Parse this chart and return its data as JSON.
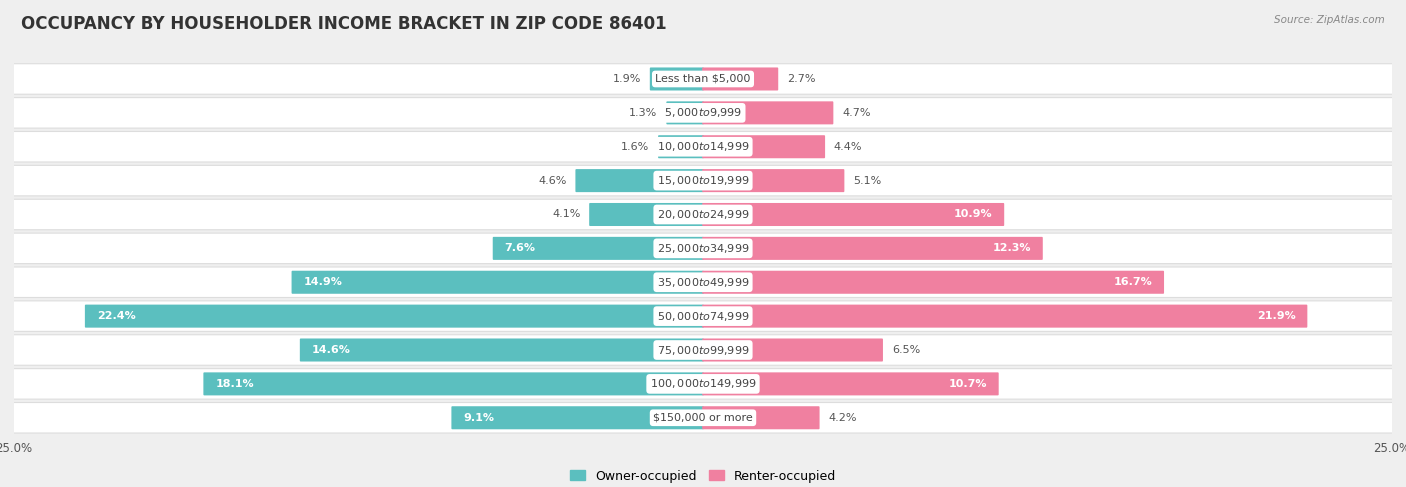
{
  "title": "OCCUPANCY BY HOUSEHOLDER INCOME BRACKET IN ZIP CODE 86401",
  "source": "Source: ZipAtlas.com",
  "categories": [
    "Less than $5,000",
    "$5,000 to $9,999",
    "$10,000 to $14,999",
    "$15,000 to $19,999",
    "$20,000 to $24,999",
    "$25,000 to $34,999",
    "$35,000 to $49,999",
    "$50,000 to $74,999",
    "$75,000 to $99,999",
    "$100,000 to $149,999",
    "$150,000 or more"
  ],
  "owner_values": [
    1.9,
    1.3,
    1.6,
    4.6,
    4.1,
    7.6,
    14.9,
    22.4,
    14.6,
    18.1,
    9.1
  ],
  "renter_values": [
    2.7,
    4.7,
    4.4,
    5.1,
    10.9,
    12.3,
    16.7,
    21.9,
    6.5,
    10.7,
    4.2
  ],
  "owner_color": "#5bbfbf",
  "renter_color": "#f080a0",
  "max_value": 25.0,
  "background_color": "#efefef",
  "bar_row_color": "#ffffff",
  "bar_row_edge": "#dddddd",
  "label_color_dark": "#555555",
  "label_color_light": "#ffffff",
  "title_fontsize": 12,
  "label_fontsize": 8,
  "category_fontsize": 8,
  "legend_fontsize": 9,
  "inside_threshold": 7.0
}
